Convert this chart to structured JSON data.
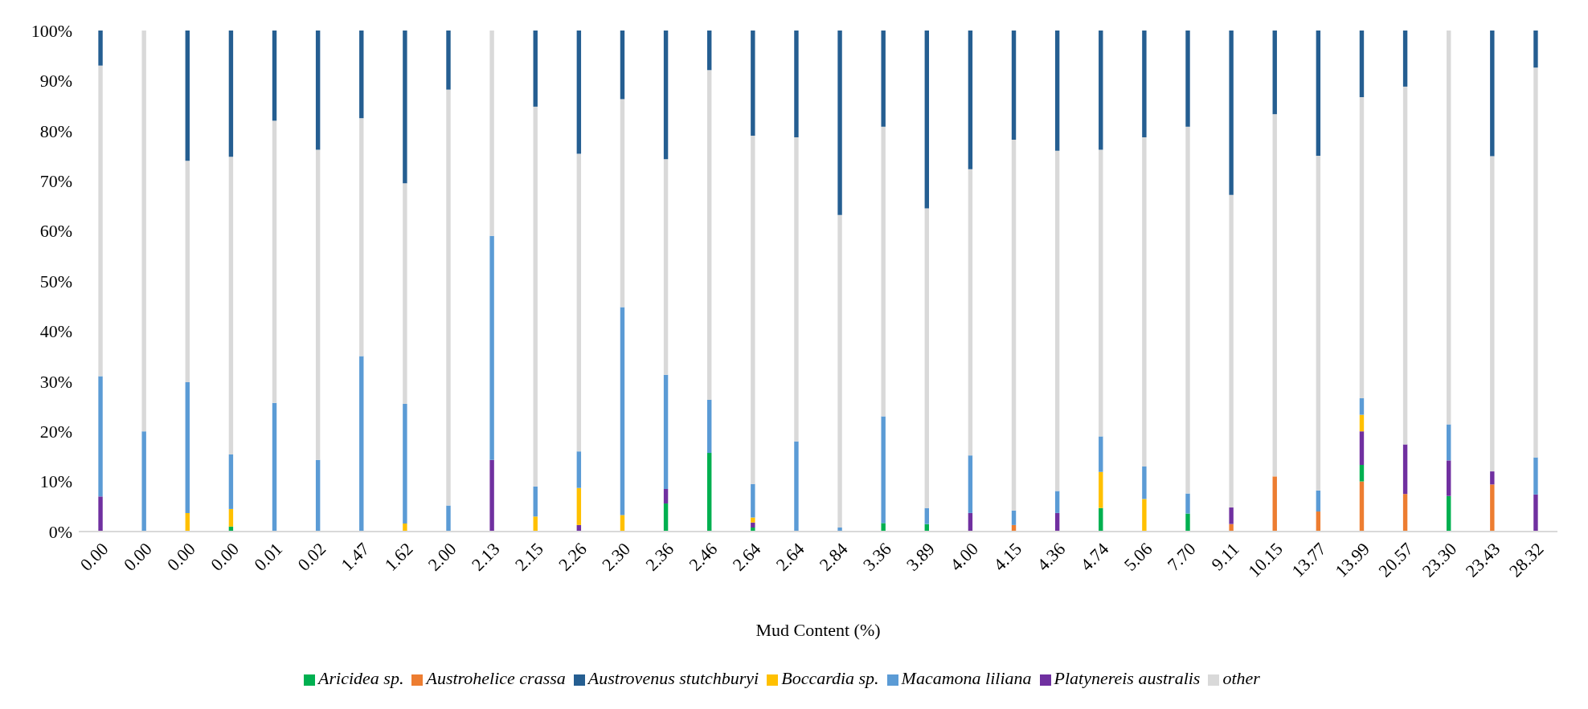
{
  "chart_data": {
    "type": "bar",
    "stacked": true,
    "xlabel": "Mud Content (%)",
    "categories": [
      "0.00",
      "0.00",
      "0.00",
      "0.00",
      "0.01",
      "0.02",
      "1.47",
      "1.62",
      "2.00",
      "2.13",
      "2.15",
      "2.26",
      "2.30",
      "2.36",
      "2.46",
      "2.64",
      "2.64",
      "2.84",
      "3.36",
      "3.89",
      "4.00",
      "4.15",
      "4.36",
      "4.74",
      "5.06",
      "7.70",
      "9.11",
      "10.15",
      "13.77",
      "13.99",
      "20.57",
      "23.30",
      "23.43",
      "28.32"
    ],
    "series": [
      {
        "name": "Austrohelice crassa",
        "color": "#ed7d31",
        "values": [
          0,
          0,
          0,
          0,
          0,
          0,
          0,
          0,
          0,
          0,
          0,
          0,
          0,
          0,
          0,
          0,
          0,
          0,
          0,
          0,
          0,
          1.3,
          0,
          0,
          0,
          0,
          1.5,
          11,
          4,
          10,
          7.5,
          0,
          9.4,
          0
        ]
      },
      {
        "name": "Aricidea sp.",
        "color": "#00b050",
        "values": [
          0,
          0,
          0,
          1,
          0,
          0,
          0,
          0,
          0,
          0,
          0,
          0,
          0,
          5.6,
          15.7,
          0.8,
          0,
          0,
          1.7,
          1.5,
          0,
          0,
          0,
          4.7,
          0,
          3.6,
          0,
          0,
          0,
          3.3,
          0,
          7.1,
          0,
          0
        ]
      },
      {
        "name": "Platynereis australis",
        "color": "#7030a0",
        "values": [
          7,
          0,
          0,
          0,
          0,
          0,
          0,
          0,
          0,
          14.3,
          0,
          1.3,
          0,
          2.9,
          0,
          1,
          0,
          0,
          0,
          0,
          3.7,
          0,
          3.7,
          0,
          0,
          0,
          3.3,
          0,
          0,
          6.7,
          9.9,
          7.1,
          2.6,
          7.4
        ]
      },
      {
        "name": "Boccardia sp.",
        "color": "#ffc000",
        "values": [
          0,
          0,
          3.7,
          3.5,
          0,
          0,
          0,
          1.6,
          0,
          0,
          3,
          7.4,
          3.3,
          0,
          0,
          1,
          0,
          0,
          0,
          0,
          0,
          0,
          0,
          7.2,
          6.5,
          0,
          0,
          0,
          0,
          3.3,
          0,
          0,
          0,
          0
        ]
      },
      {
        "name": "Macamona liliana",
        "color": "#5b9bd5",
        "values": [
          24,
          20,
          26.1,
          10.9,
          25.7,
          14.3,
          35,
          23.9,
          5.2,
          44.7,
          6,
          7.3,
          41.5,
          22.8,
          10.6,
          6.7,
          18,
          0.8,
          21.3,
          3.2,
          11.5,
          2.9,
          4.4,
          7.1,
          6.5,
          4,
          0,
          0,
          4.2,
          3.3,
          0,
          7.2,
          0,
          7.4
        ]
      },
      {
        "name": "other",
        "color": "#d9d9d9",
        "values": [
          62,
          80,
          44.2,
          59.4,
          56.3,
          61.9,
          47.5,
          44,
          83,
          41,
          75.8,
          59.4,
          41.5,
          43,
          65.8,
          69.5,
          60.7,
          62.4,
          57.8,
          59.8,
          57.1,
          74,
          67.9,
          57.2,
          65.7,
          73.2,
          62.4,
          72.3,
          66.8,
          60.1,
          71.4,
          78.6,
          62.9,
          77.8
        ]
      },
      {
        "name": "Austrovenus stutchburyi",
        "color": "#255e91",
        "values": [
          7,
          0,
          26,
          25.2,
          18,
          23.8,
          17.5,
          30.5,
          11.8,
          0,
          15.2,
          24.6,
          13.7,
          25.7,
          7.9,
          21,
          21.3,
          36.8,
          19.2,
          35.5,
          27.7,
          21.8,
          24,
          23.8,
          21.3,
          19.2,
          32.8,
          16.7,
          25,
          13.3,
          11.2,
          0,
          25.1,
          7.4
        ]
      }
    ],
    "ylim": [
      0,
      100
    ],
    "yticks": [
      {
        "value": 0,
        "label": "0%"
      },
      {
        "value": 10,
        "label": "10%"
      },
      {
        "value": 20,
        "label": "20%"
      },
      {
        "value": 30,
        "label": "30%"
      },
      {
        "value": 40,
        "label": "40%"
      },
      {
        "value": 50,
        "label": "50%"
      },
      {
        "value": 60,
        "label": "60%"
      },
      {
        "value": 70,
        "label": "70%"
      },
      {
        "value": 80,
        "label": "80%"
      },
      {
        "value": 90,
        "label": "90%"
      },
      {
        "value": 100,
        "label": "100%"
      }
    ],
    "grid": false,
    "legend": "bottom"
  }
}
